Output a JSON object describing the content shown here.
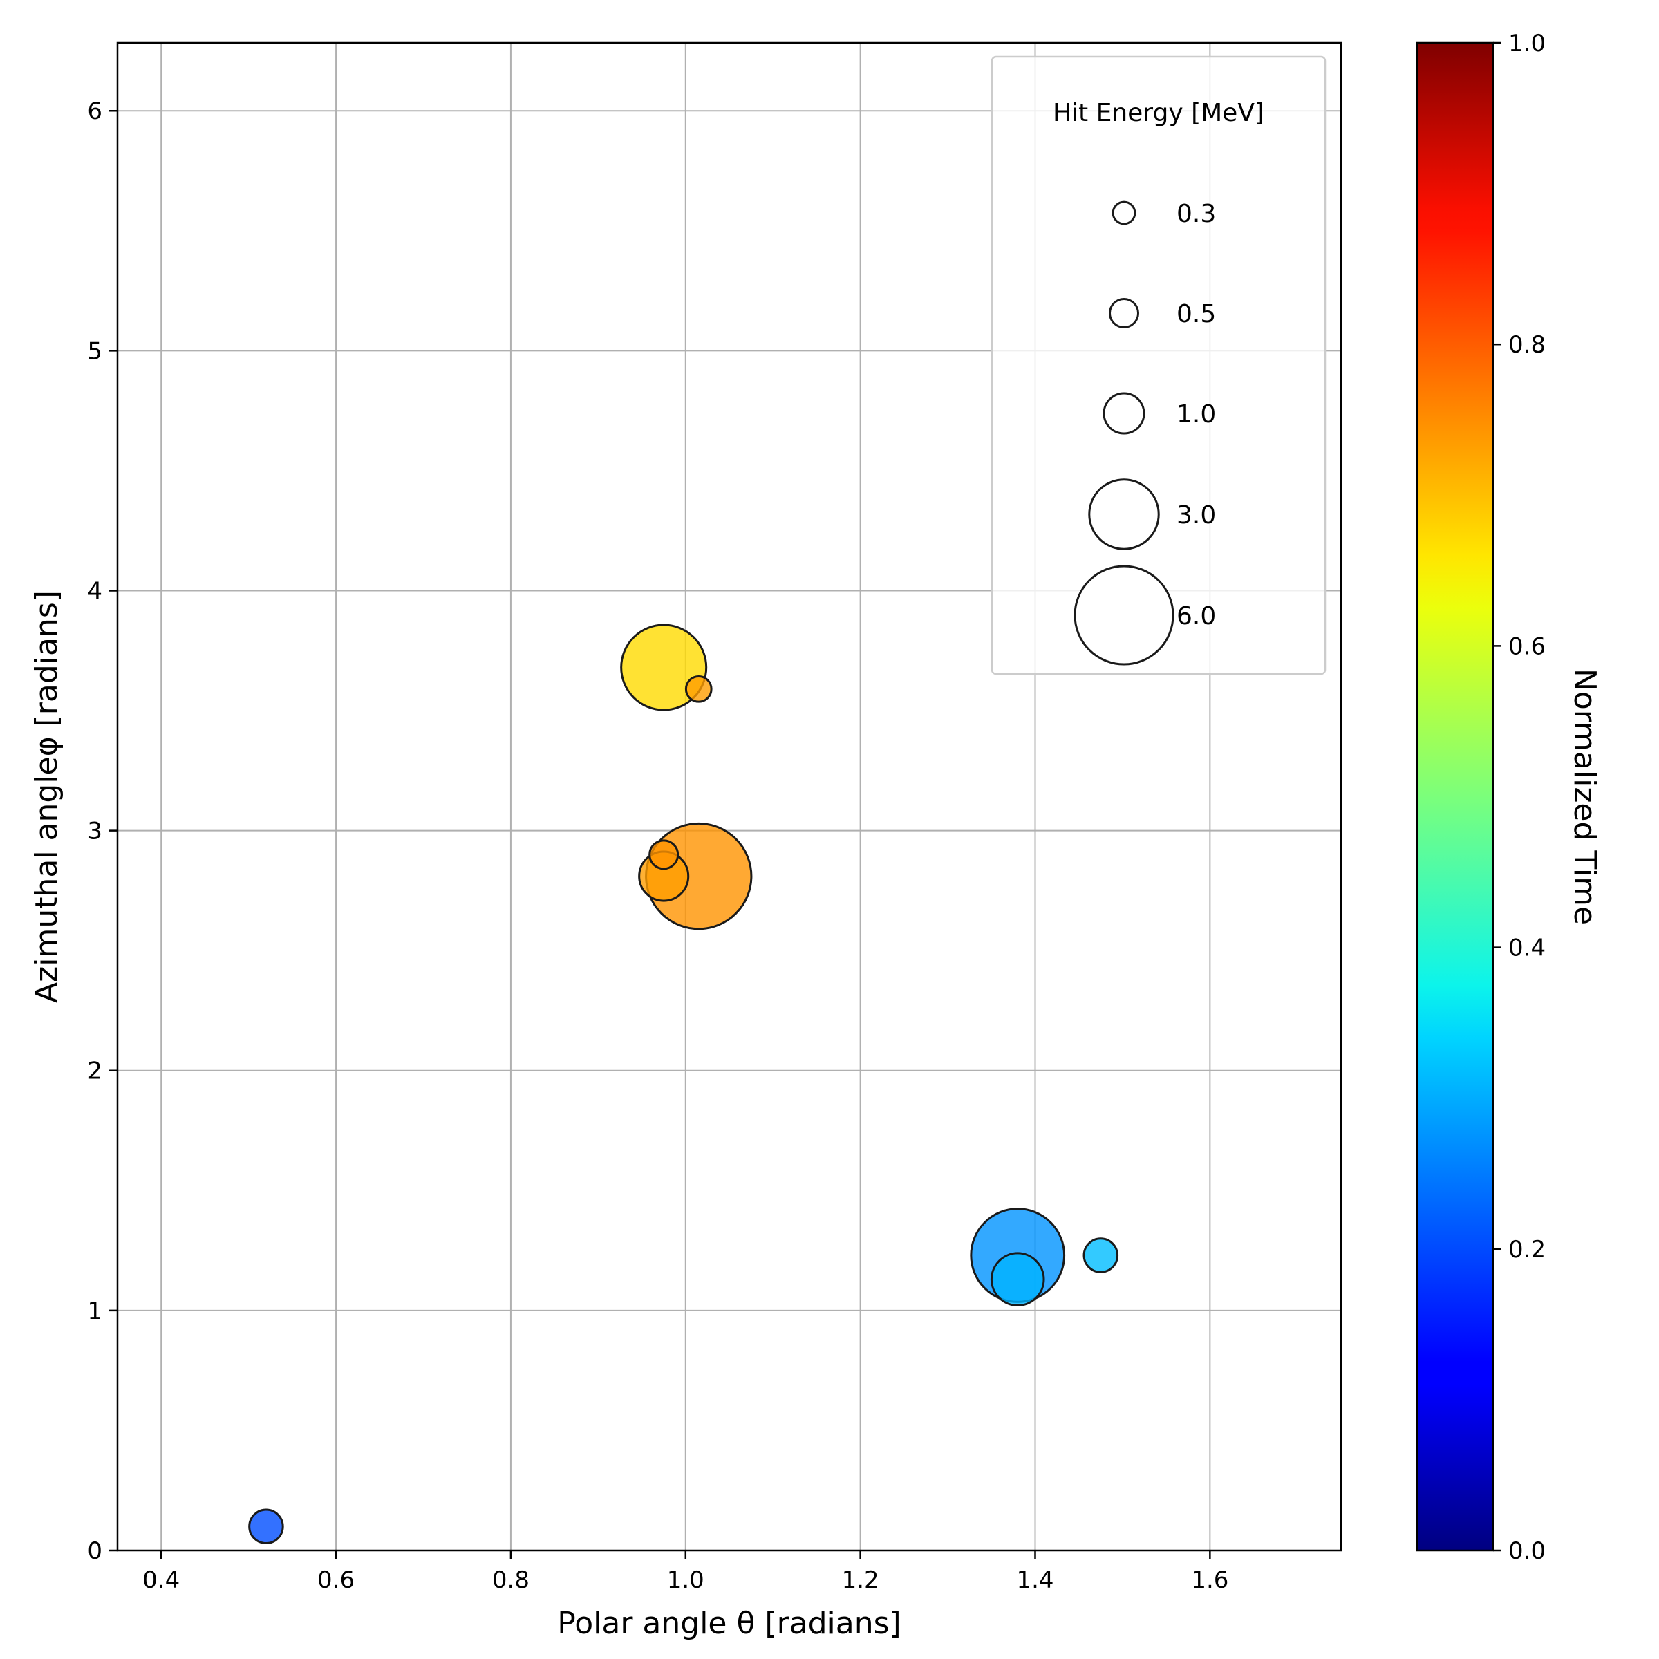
{
  "chart_data": {
    "type": "scatter",
    "xlabel": "Polar angle θ [radians]",
    "ylabel": "Azimuthal angleφ [radians]",
    "xlim": [
      0.35,
      1.75
    ],
    "ylim": [
      0,
      6.283
    ],
    "x_ticks": [
      0.4,
      0.6,
      0.8,
      1.0,
      1.2,
      1.4,
      1.6
    ],
    "x_tick_labels": [
      "0.4",
      "0.6",
      "0.8",
      "1.0",
      "1.2",
      "1.4",
      "1.6"
    ],
    "y_ticks": [
      0,
      1,
      2,
      3,
      4,
      5,
      6
    ],
    "y_tick_labels": [
      "0",
      "1",
      "2",
      "3",
      "4",
      "5",
      "6"
    ],
    "grid": true,
    "points": [
      {
        "x": 0.52,
        "y": 0.1,
        "energy": 0.7,
        "time": 0.2
      },
      {
        "x": 0.975,
        "y": 3.68,
        "energy": 4.5,
        "time": 0.66
      },
      {
        "x": 1.015,
        "y": 3.59,
        "energy": 0.4,
        "time": 0.72
      },
      {
        "x": 1.015,
        "y": 2.81,
        "energy": 6.9,
        "time": 0.73
      },
      {
        "x": 0.975,
        "y": 2.81,
        "energy": 1.5,
        "time": 0.72
      },
      {
        "x": 0.975,
        "y": 2.9,
        "energy": 0.5,
        "time": 0.73
      },
      {
        "x": 1.38,
        "y": 1.23,
        "energy": 5.4,
        "time": 0.27
      },
      {
        "x": 1.38,
        "y": 1.13,
        "energy": 1.7,
        "time": 0.3
      },
      {
        "x": 1.475,
        "y": 1.23,
        "energy": 0.7,
        "time": 0.31
      }
    ],
    "size_legend": {
      "title": "Hit Energy [MeV]",
      "placement": "top-right",
      "entries": [
        {
          "label": "0.3",
          "energy": 0.3
        },
        {
          "label": "0.5",
          "energy": 0.5
        },
        {
          "label": "1.0",
          "energy": 1.0
        },
        {
          "label": "3.0",
          "energy": 3.0
        },
        {
          "label": "6.0",
          "energy": 6.0
        }
      ]
    },
    "colorbar": {
      "label": "Normalized Time",
      "colormap": "jet",
      "range": [
        0,
        1
      ],
      "ticks": [
        0.0,
        0.2,
        0.4,
        0.6,
        0.8,
        1.0
      ],
      "tick_labels": [
        "0.0",
        "0.2",
        "0.4",
        "0.6",
        "0.8",
        "1.0"
      ]
    }
  }
}
